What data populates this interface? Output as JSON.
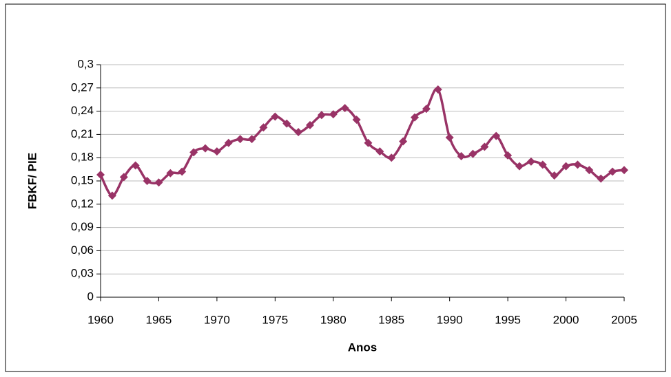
{
  "chart_data": {
    "type": "line",
    "xlabel": "Anos",
    "ylabel": "FBKF/ PIE",
    "x": [
      1960,
      1961,
      1962,
      1963,
      1964,
      1965,
      1966,
      1967,
      1968,
      1969,
      1970,
      1971,
      1972,
      1973,
      1974,
      1975,
      1976,
      1977,
      1978,
      1979,
      1980,
      1981,
      1982,
      1983,
      1984,
      1985,
      1986,
      1987,
      1988,
      1989,
      1990,
      1991,
      1992,
      1993,
      1994,
      1995,
      1996,
      1997,
      1998,
      1999,
      2000,
      2001,
      2002,
      2003,
      2004,
      2005
    ],
    "series": [
      {
        "color": "#993366",
        "values": [
          0.158,
          0.131,
          0.155,
          0.17,
          0.15,
          0.148,
          0.16,
          0.162,
          0.187,
          0.192,
          0.188,
          0.199,
          0.204,
          0.204,
          0.219,
          0.233,
          0.224,
          0.213,
          0.222,
          0.235,
          0.236,
          0.244,
          0.229,
          0.199,
          0.188,
          0.18,
          0.201,
          0.232,
          0.243,
          0.268,
          0.206,
          0.182,
          0.185,
          0.194,
          0.208,
          0.183,
          0.169,
          0.175,
          0.171,
          0.157,
          0.169,
          0.171,
          0.164,
          0.153,
          0.162,
          0.164
        ]
      }
    ],
    "xlim": [
      1960,
      2005
    ],
    "xticks": [
      1960,
      1965,
      1970,
      1975,
      1980,
      1985,
      1990,
      1995,
      2000,
      2005
    ],
    "ylim": [
      0,
      0.3
    ],
    "yticks": [
      0,
      {
        "value": 0.03,
        "label": "0,03"
      },
      {
        "value": 0.06,
        "label": "0,06"
      },
      {
        "value": 0.09,
        "label": "0,09"
      },
      {
        "value": 0.12,
        "label": "0,12"
      },
      {
        "value": 0.15,
        "label": "0,15"
      },
      {
        "value": 0.18,
        "label": "0,18"
      },
      {
        "value": 0.21,
        "label": "0,21"
      },
      {
        "value": 0.24,
        "label": "0,24"
      },
      {
        "value": 0.27,
        "label": "0,27"
      },
      {
        "value": 0.3,
        "label": "0,3"
      }
    ],
    "grid": true
  }
}
